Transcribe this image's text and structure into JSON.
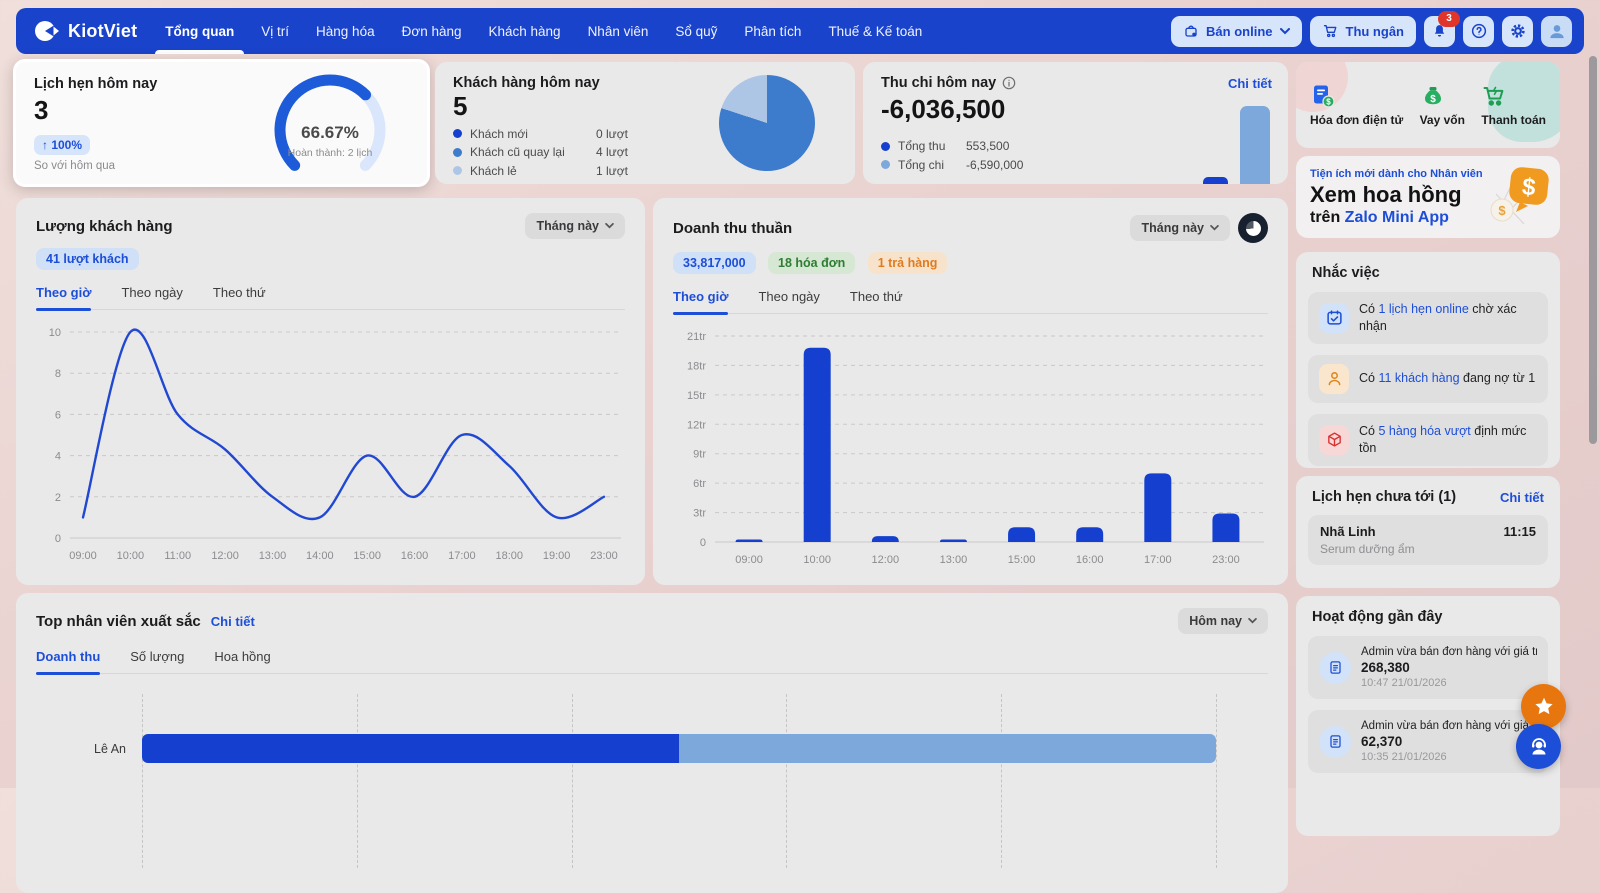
{
  "colors": {
    "navbar": "#1a43cb",
    "accent": "#1d4ed8",
    "line": "#2148d1",
    "bar_dark": "#1540cf",
    "bar_light": "#7da8dc",
    "pie_mid": "#3d7ccd",
    "pie_light": "#aec6e6",
    "badge_red": "#e0352b"
  },
  "nav": {
    "brand": "KiotViet",
    "items": [
      {
        "label": "Tổng quan"
      },
      {
        "label": "Vị trí"
      },
      {
        "label": "Hàng hóa"
      },
      {
        "label": "Đơn hàng"
      },
      {
        "label": "Khách hàng"
      },
      {
        "label": "Nhân viên"
      },
      {
        "label": "Sổ quỹ"
      },
      {
        "label": "Phân tích"
      },
      {
        "label": "Thuế & Kế toán"
      }
    ],
    "active_item": "Tổng quan",
    "ban_online_label": "Bán online",
    "thu_ngan_label": "Thu ngân",
    "notification_badge": "3"
  },
  "stat_cards": {
    "appointments": {
      "title": "Lịch hẹn hôm nay",
      "value": "3",
      "change": "↑ 100%",
      "compare": "So với hôm qua",
      "gauge_label": "66.67%",
      "gauge_percent": 66.67,
      "gauge_sub": "Hoàn thành: 2 lịch"
    },
    "customers": {
      "title": "Khách hàng hôm nay",
      "value": "5",
      "legend": [
        {
          "label": "Khách mới",
          "value": "0 lượt"
        },
        {
          "label": "Khách cũ quay lại",
          "value": "4 lượt"
        },
        {
          "label": "Khách lẻ",
          "value": "1 lượt"
        }
      ]
    },
    "cashflow": {
      "title": "Thu chi hôm nay",
      "detail": "Chi tiết",
      "value": "-6,036,500",
      "legend": [
        {
          "label": "Tổng thu",
          "value": "553,500"
        },
        {
          "label": "Tổng chi",
          "value": "-6,590,000"
        }
      ]
    }
  },
  "traffic": {
    "title": "Lượng khách hàng",
    "badge": "41 lượt khách",
    "period": "Tháng này",
    "tabs": [
      "Theo giờ",
      "Theo ngày",
      "Theo thứ"
    ]
  },
  "revenue": {
    "title": "Doanh thu thuần",
    "badge_total": "33,817,000",
    "badge_orders": "18 hóa đơn",
    "badge_returns": "1 trả hàng",
    "period": "Tháng này",
    "tabs": [
      "Theo giờ",
      "Theo ngày",
      "Theo thứ"
    ]
  },
  "employees": {
    "title": "Top nhân viên xuất sắc",
    "detail": "Chi tiết",
    "period": "Hôm nay",
    "tabs": [
      "Doanh thu",
      "Số lượng",
      "Hoa hồng"
    ],
    "rows": [
      {
        "name": "Lê An"
      }
    ]
  },
  "sidebar": {
    "quick_actions": [
      {
        "label": "Hóa đơn điện tử"
      },
      {
        "label": "Vay vốn"
      },
      {
        "label": "Thanh toán"
      }
    ],
    "banner": {
      "line1": "Tiện ích mới dành cho Nhân viên",
      "line2": "Xem hoa hồng",
      "line3_prefix": "trên ",
      "line3_link": "Zalo Mini App"
    },
    "reminders": {
      "title": "Nhắc việc",
      "items": [
        {
          "prefix": "Có ",
          "link": "1 lịch hẹn online",
          "suffix": " chờ xác nhận"
        },
        {
          "prefix": "Có ",
          "link": "11 khách hàng",
          "suffix": " đang nợ từ 1"
        },
        {
          "prefix": "Có ",
          "link": "5 hàng hóa vượt",
          "suffix": " định mức tồn"
        }
      ]
    },
    "upcoming": {
      "title": "Lịch hẹn chưa tới (1)",
      "detail": "Chi tiết",
      "items": [
        {
          "name": "Nhã Linh",
          "time": "11:15",
          "service": "Serum dưỡng ẩm"
        }
      ]
    },
    "activities": {
      "title": "Hoạt động gần đây",
      "items": [
        {
          "text": "Admin vừa bán đơn hàng với giá trị",
          "value": "268,380",
          "time": "10:47 21/01/2026"
        },
        {
          "text": "Admin vừa bán đơn hàng với giá trị",
          "value": "62,370",
          "time": "10:35 21/01/2026"
        }
      ]
    }
  },
  "chart_data": [
    {
      "name": "traffic-by-hour",
      "type": "line",
      "title": "Lượng khách hàng - Theo giờ",
      "x": [
        "09:00",
        "10:00",
        "11:00",
        "12:00",
        "13:00",
        "14:00",
        "15:00",
        "16:00",
        "17:00",
        "18:00",
        "19:00",
        "23:00"
      ],
      "values": [
        1,
        10,
        6,
        4.3,
        2,
        1,
        4,
        2,
        5,
        3.5,
        1,
        2
      ],
      "ylim": [
        0,
        10
      ],
      "yticks": [
        0,
        2,
        4,
        6,
        8,
        10
      ],
      "grid": true,
      "line_color": "#2148d1"
    },
    {
      "name": "revenue-by-hour",
      "type": "bar",
      "title": "Doanh thu thuần - Theo giờ",
      "unit": "triệu đồng",
      "categories": [
        "09:00",
        "10:00",
        "12:00",
        "13:00",
        "15:00",
        "16:00",
        "17:00",
        "23:00"
      ],
      "values": [
        0.1,
        19.8,
        0.6,
        0.1,
        1.5,
        1.5,
        7,
        2.9
      ],
      "ylim": [
        0,
        21
      ],
      "ytick_values": [
        0,
        3,
        6,
        9,
        12,
        15,
        18,
        21
      ],
      "ytick_labels": [
        "0",
        "3tr",
        "6tr",
        "9tr",
        "12tr",
        "15tr",
        "18tr",
        "21tr"
      ],
      "bar_color": "#1540cf"
    },
    {
      "name": "customers-today",
      "type": "pie",
      "slices": [
        {
          "label": "Khách mới",
          "value": 0,
          "color": "#1540cf"
        },
        {
          "label": "Khách cũ quay lại",
          "value": 4,
          "color": "#3d7ccd"
        },
        {
          "label": "Khách lẻ",
          "value": 1,
          "color": "#aec6e6"
        }
      ]
    },
    {
      "name": "top-employee-revenue",
      "type": "bar",
      "orientation": "horizontal",
      "categories": [
        "Lê An"
      ],
      "series": [
        {
          "name": "segment-dark",
          "fraction": 0.5,
          "color": "#1540cf"
        },
        {
          "name": "segment-light",
          "fraction": 0.5,
          "color": "#7da8dc"
        }
      ]
    },
    {
      "name": "cashflow-mini",
      "type": "bar",
      "categories": [
        "Tổng thu",
        "Tổng chi"
      ],
      "values": [
        553500,
        6590000
      ],
      "colors": [
        "#1540cf",
        "#7da8dc"
      ]
    }
  ]
}
